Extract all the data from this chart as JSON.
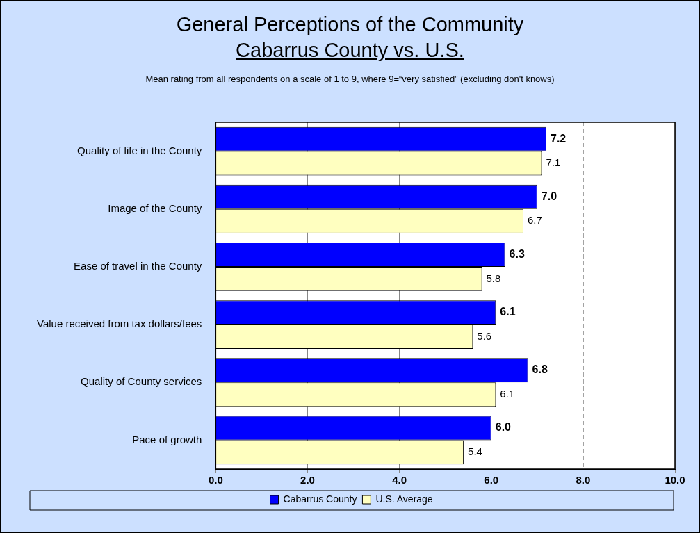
{
  "chart_data": {
    "type": "bar",
    "orientation": "horizontal",
    "title": "General Perceptions of the Community",
    "subtitle": "Cabarrus County vs. U.S.",
    "annotations": [
      "Mean rating from all respondents on a scale of 1 to 9, where 9=“very satisfied” (excluding don't knows)"
    ],
    "categories": [
      "Quality of life in the County",
      "Image of the County",
      "Ease of travel in the County",
      "Value received from tax dollars/fees",
      "Quality of County services",
      "Pace of growth"
    ],
    "series": [
      {
        "name": "Cabarrus County",
        "color": "#0000ff",
        "values": [
          7.2,
          7.0,
          6.3,
          6.1,
          6.8,
          6.0
        ],
        "value_labels": [
          "7.2",
          "7.0",
          "6.3",
          "6.1",
          "6.8",
          "6.0"
        ]
      },
      {
        "name": "U.S. Average",
        "color": "#ffffc0",
        "values": [
          7.1,
          6.7,
          5.8,
          5.6,
          6.1,
          5.4
        ],
        "value_labels": [
          "7.1",
          "6.7",
          "5.8",
          "5.6",
          "6.1",
          "5.4"
        ]
      }
    ],
    "xlim": [
      0,
      10
    ],
    "xticks": [
      {
        "value": 0,
        "label": "0.0"
      },
      {
        "value": 2,
        "label": "2.0"
      },
      {
        "value": 4,
        "label": "4.0"
      },
      {
        "value": 6,
        "label": "6.0"
      },
      {
        "value": 8,
        "label": "8.0"
      },
      {
        "value": 10,
        "label": "10.0"
      }
    ],
    "ref_lines": [
      {
        "axis": "x",
        "value": 8,
        "line_style": "dashed",
        "color": "#000000"
      }
    ],
    "grid": "x",
    "legend": "bottom"
  }
}
